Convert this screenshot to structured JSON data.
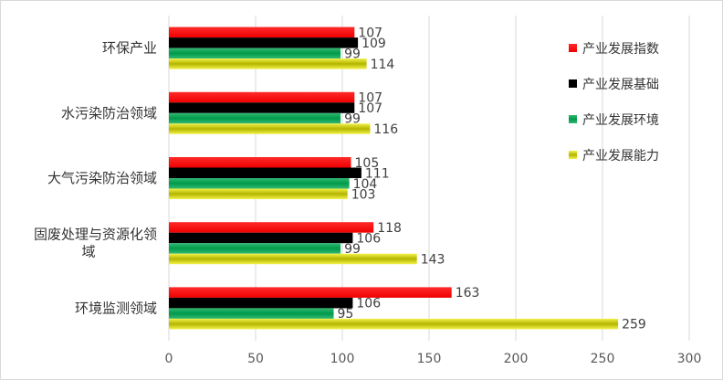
{
  "chart_data": {
    "type": "bar",
    "orientation": "horizontal",
    "categories": [
      [
        "环保产业"
      ],
      [
        "水污染防治领域"
      ],
      [
        "大气污染防治领域"
      ],
      [
        "固废处理与资源化领",
        "域"
      ],
      [
        "环境监测领域"
      ]
    ],
    "series": [
      {
        "name": "产业发展指数",
        "color": "#ff0000",
        "values": [
          107,
          107,
          105,
          118,
          163
        ]
      },
      {
        "name": "产业发展基础",
        "color": "#000000",
        "values": [
          109,
          107,
          111,
          106,
          106
        ]
      },
      {
        "name": "产业发展环境",
        "color": "#00a04f",
        "gradient": [
          "#00a04f",
          "#66cc99"
        ],
        "values": [
          99,
          99,
          104,
          99,
          95
        ]
      },
      {
        "name": "产业发展能力",
        "color": "#c8c800",
        "gradient": [
          "#b0b000",
          "#f5f552"
        ],
        "values": [
          114,
          116,
          103,
          143,
          259
        ]
      }
    ],
    "xlim": [
      0,
      300
    ],
    "xticks": [
      0,
      50,
      100,
      150,
      200,
      250,
      300
    ],
    "grid": "vertical",
    "legend": "right"
  }
}
